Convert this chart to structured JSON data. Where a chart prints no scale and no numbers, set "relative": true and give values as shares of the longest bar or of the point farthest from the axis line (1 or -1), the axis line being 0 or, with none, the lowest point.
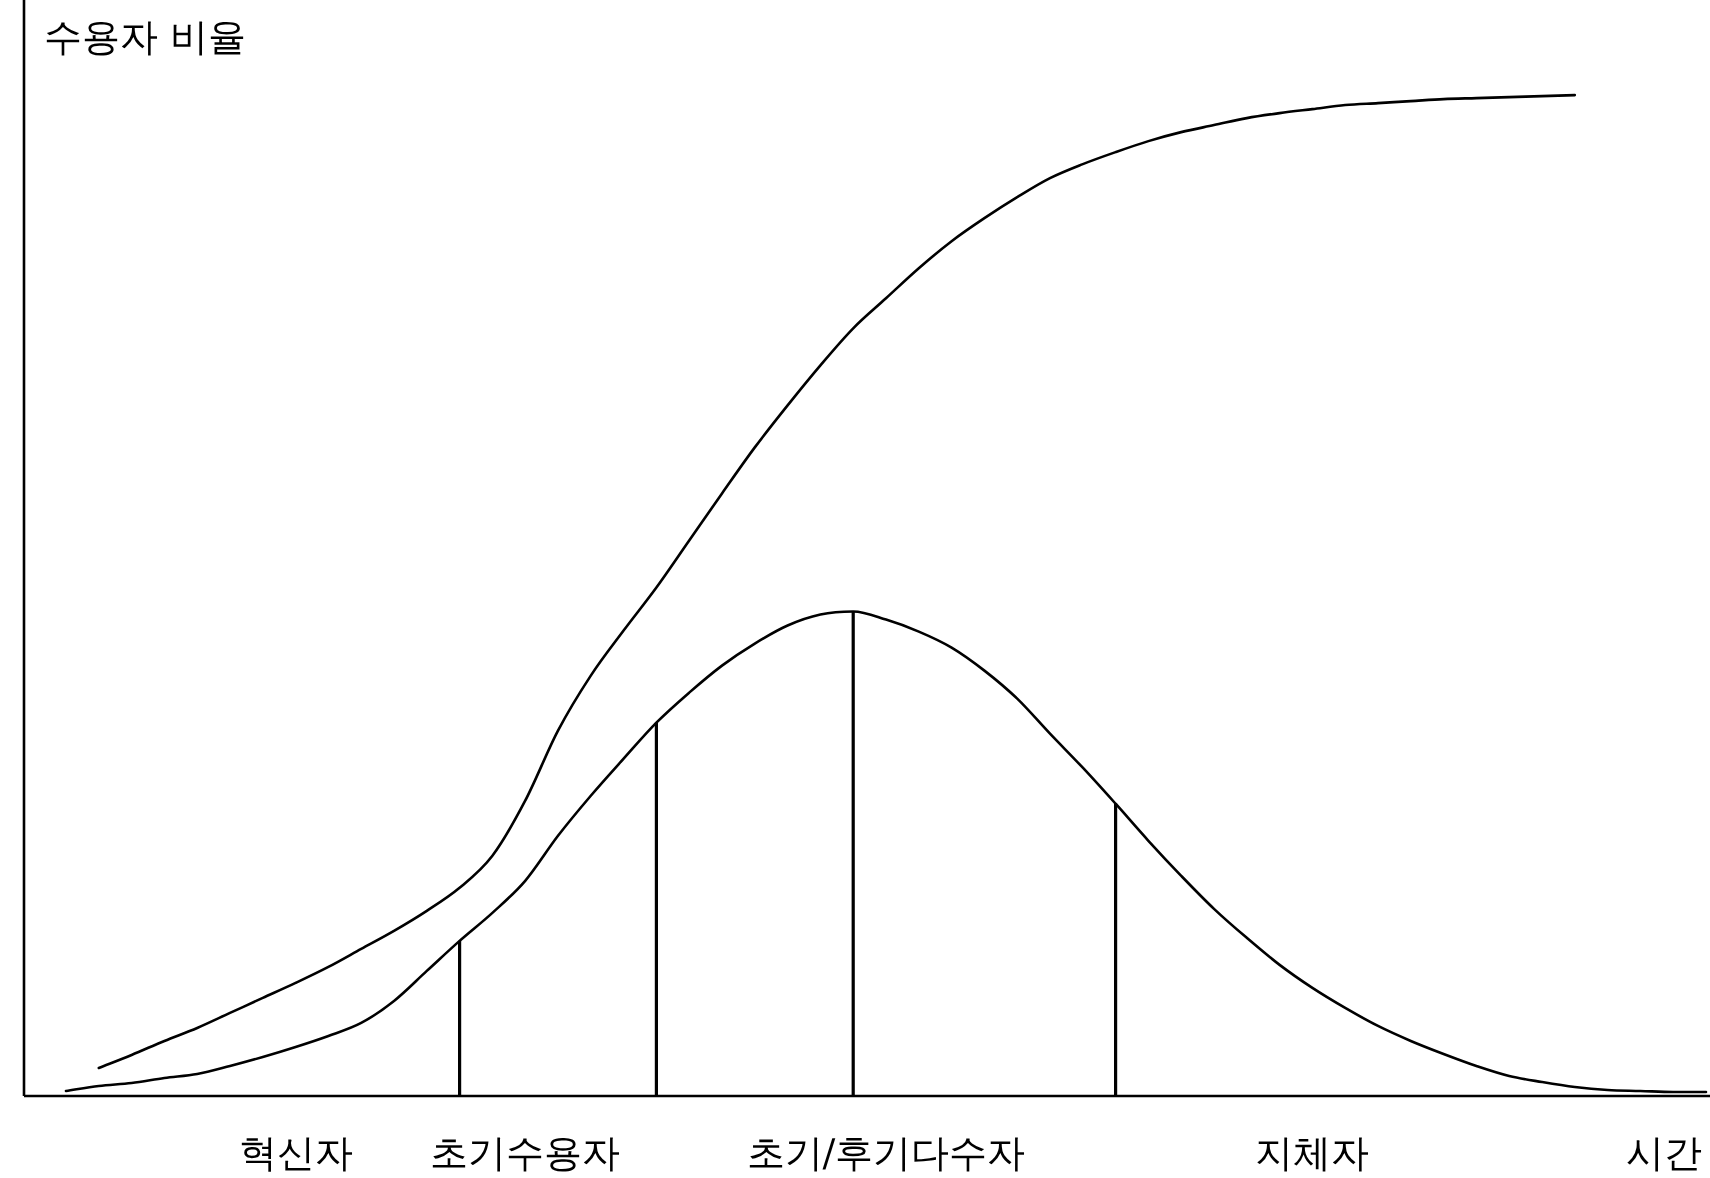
{
  "chart_data": {
    "type": "line",
    "relative": true,
    "ylabel": "수용자 비율",
    "xlabel": "시간",
    "categories": [
      null,
      null,
      null,
      null,
      null,
      null,
      null,
      "혁신자",
      null,
      null,
      null,
      null,
      null,
      null,
      "초기수용자",
      null,
      null,
      null,
      null,
      null,
      null,
      null,
      null,
      null,
      null,
      "초기/후기다수자",
      null,
      null,
      null,
      null,
      null,
      null,
      null,
      null,
      null,
      null,
      null,
      null,
      "지체자",
      null,
      null,
      null,
      null,
      null,
      null,
      null,
      null,
      null,
      null,
      null,
      null
    ],
    "line_style": "solid",
    "marker": "none",
    "series": [
      {
        "color": "#000000",
        "values": [
          0.005,
          0.01,
          0.013,
          0.018,
          0.022,
          0.03,
          0.039,
          0.049,
          0.06,
          0.073,
          0.095,
          0.125,
          0.155,
          0.183,
          0.215,
          0.26,
          0.3,
          0.337,
          0.373,
          0.403,
          0.43,
          0.452,
          0.47,
          0.481,
          0.484,
          0.476,
          0.464,
          0.448,
          0.425,
          0.397,
          0.362,
          0.328,
          0.292,
          0.255,
          0.22,
          0.187,
          0.158,
          0.131,
          0.108,
          0.088,
          0.07,
          0.055,
          0.042,
          0.03,
          0.02,
          0.014,
          0.009,
          0.006,
          0.005,
          0.004,
          0.004
        ]
      },
      {
        "color": "#000000",
        "values": [
          null,
          0.028,
          0.041,
          0.055,
          0.068,
          0.083,
          0.098,
          0.113,
          0.129,
          0.147,
          0.165,
          0.185,
          0.208,
          0.24,
          0.295,
          0.365,
          0.42,
          0.465,
          0.508,
          0.555,
          0.602,
          0.648,
          0.69,
          0.73,
          0.767,
          0.797,
          0.827,
          0.854,
          0.877,
          0.898,
          0.917,
          0.931,
          0.943,
          0.954,
          0.963,
          0.97,
          0.977,
          0.982,
          0.986,
          0.99,
          0.992,
          0.994,
          0.996,
          0.997,
          0.998,
          0.999,
          1,
          null,
          null,
          null,
          null
        ]
      },
      {
        "type": "bar",
        "color": "#000000",
        "values": [
          null,
          null,
          null,
          null,
          null,
          null,
          null,
          null,
          null,
          null,
          null,
          null,
          0.155,
          null,
          null,
          null,
          null,
          null,
          0.373,
          null,
          null,
          null,
          null,
          null,
          0.484,
          null,
          null,
          null,
          null,
          null,
          null,
          null,
          0.292,
          null,
          null,
          null,
          null,
          null,
          null,
          null,
          null,
          null,
          null,
          null,
          null,
          null,
          null,
          null,
          null,
          null,
          null
        ]
      }
    ]
  }
}
